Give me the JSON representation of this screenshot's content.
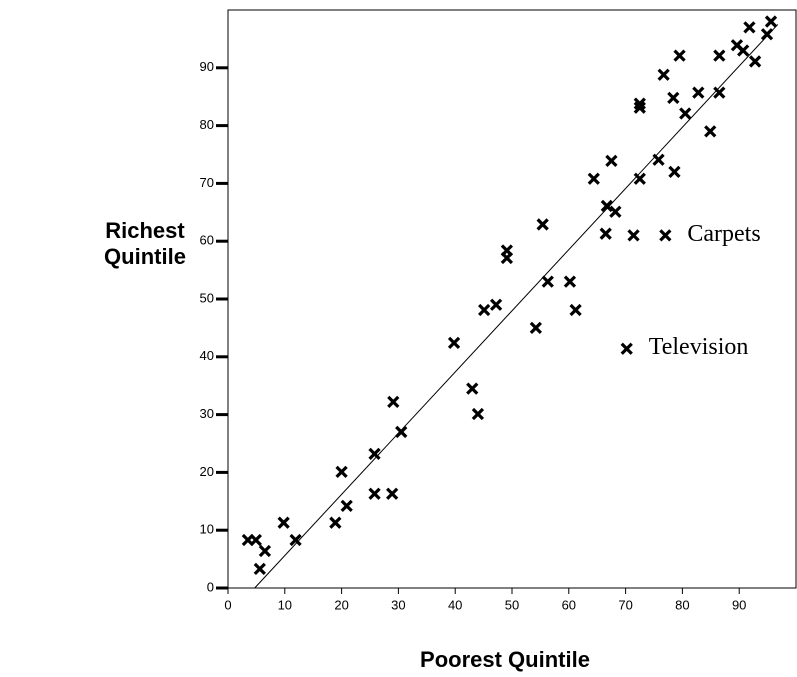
{
  "chart_data": {
    "type": "scatter",
    "x_label": "Poorest Quintile",
    "y_label": "Richest Quintile",
    "xlim": [
      0,
      100
    ],
    "ylim": [
      0,
      100
    ],
    "xticks": [
      0,
      10,
      20,
      30,
      40,
      50,
      60,
      70,
      80,
      90
    ],
    "yticks": [
      0,
      10,
      20,
      30,
      40,
      50,
      60,
      70,
      80,
      90
    ],
    "color": "#000000",
    "x": [
      3.5,
      4.9,
      5.6,
      6.5,
      9.8,
      11.9,
      18.9,
      20,
      20.9,
      25.8,
      25.8,
      28.9,
      29.1,
      30.5,
      39.8,
      43,
      44,
      45.1,
      47.2,
      49.1,
      49.1,
      54.2,
      55.4,
      56.3,
      60.2,
      61.2,
      64.4,
      66.5,
      66.7,
      67.5,
      68.2,
      71.4,
      72.5,
      72.5,
      72.5,
      75.8,
      76.7,
      78.4,
      78.6,
      79.5,
      80.5,
      82.8,
      84.9,
      86.5,
      86.5,
      89.6,
      90.7,
      91.8,
      92.8,
      94.9,
      95.6
    ],
    "y": [
      8.3,
      8.3,
      3.3,
      6.4,
      11.3,
      8.3,
      11.3,
      20.1,
      14.2,
      23.2,
      16.3,
      16.3,
      32.2,
      27,
      42.4,
      34.5,
      30.1,
      48.1,
      49,
      58.4,
      57.1,
      45,
      62.9,
      53,
      53,
      48.1,
      70.8,
      61.3,
      66.1,
      73.9,
      65.1,
      61,
      83.8,
      83.1,
      70.8,
      74.1,
      88.8,
      84.8,
      72,
      92.1,
      82.1,
      85.7,
      79,
      92.1,
      85.7,
      93.9,
      93,
      97,
      91.1,
      95.8,
      98
    ],
    "fit_line": {
      "x": [
        4.7,
        96.8
      ],
      "y": [
        0,
        97.5
      ]
    },
    "annotations": [
      {
        "text": "Carpets",
        "x": 77,
        "y": 61
      },
      {
        "text": "Television",
        "x": 70.2,
        "y": 41.4
      }
    ]
  }
}
